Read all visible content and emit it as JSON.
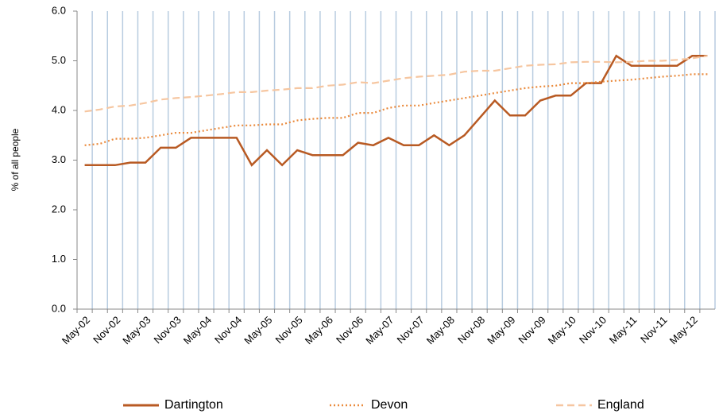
{
  "chart_data": {
    "type": "line",
    "y_label": "% of all people",
    "categories": [
      "May-02",
      null,
      "Nov-02",
      null,
      "May-03",
      null,
      "Nov-03",
      null,
      "May-04",
      null,
      "Nov-04",
      null,
      "May-05",
      null,
      "Nov-05",
      null,
      "May-06",
      null,
      "Nov-06",
      null,
      "May-07",
      null,
      "Nov-07",
      null,
      "May-08",
      null,
      "Nov-08",
      null,
      "May-09",
      null,
      "Nov-09",
      null,
      "May-10",
      null,
      "Nov-10",
      null,
      "May-11",
      null,
      "Nov-11",
      null,
      "May-12",
      null
    ],
    "series": [
      {
        "name": "Dartington",
        "color": "#b85a23",
        "dash": "solid",
        "values": [
          2.9,
          2.9,
          2.9,
          2.95,
          2.95,
          3.25,
          3.25,
          3.45,
          3.45,
          3.45,
          3.45,
          2.9,
          3.2,
          2.9,
          3.2,
          3.1,
          3.1,
          3.1,
          3.35,
          3.3,
          3.45,
          3.3,
          3.3,
          3.5,
          3.3,
          3.5,
          3.85,
          4.2,
          3.9,
          3.9,
          4.2,
          4.3,
          4.3,
          4.55,
          4.55,
          5.1,
          4.9,
          4.9,
          4.9,
          4.9,
          5.1,
          5.1
        ]
      },
      {
        "name": "Devon",
        "color": "#ea8a3c",
        "dash": "dotted",
        "values": [
          3.3,
          3.33,
          3.43,
          3.43,
          3.45,
          3.5,
          3.55,
          3.55,
          3.6,
          3.65,
          3.7,
          3.7,
          3.72,
          3.72,
          3.8,
          3.83,
          3.85,
          3.85,
          3.95,
          3.95,
          4.05,
          4.1,
          4.1,
          4.15,
          4.2,
          4.25,
          4.3,
          4.35,
          4.4,
          4.45,
          4.48,
          4.5,
          4.55,
          4.55,
          4.58,
          4.6,
          4.62,
          4.65,
          4.68,
          4.7,
          4.73,
          4.73
        ]
      },
      {
        "name": "England",
        "color": "#f6c6a0",
        "dash": "dashed",
        "values": [
          3.98,
          4.02,
          4.08,
          4.1,
          4.15,
          4.22,
          4.25,
          4.27,
          4.3,
          4.33,
          4.37,
          4.37,
          4.4,
          4.42,
          4.45,
          4.45,
          4.5,
          4.52,
          4.57,
          4.55,
          4.6,
          4.65,
          4.68,
          4.7,
          4.72,
          4.78,
          4.8,
          4.8,
          4.85,
          4.9,
          4.92,
          4.93,
          4.97,
          4.98,
          4.98,
          4.97,
          4.98,
          5.0,
          5.0,
          5.02,
          5.05,
          5.1
        ]
      }
    ],
    "ylim": [
      0,
      6
    ],
    "yticks": [
      {
        "value": 0,
        "label": "0.0"
      },
      {
        "value": 1,
        "label": "1.0"
      },
      {
        "value": 2,
        "label": "2.0"
      },
      {
        "value": 3,
        "label": "3.0"
      },
      {
        "value": 4,
        "label": "4.0"
      },
      {
        "value": 5,
        "label": "5.0"
      },
      {
        "value": 6,
        "label": "6.0"
      }
    ],
    "grid": "vertical",
    "grid_color": "#b8cce0",
    "legend": "bottom"
  }
}
